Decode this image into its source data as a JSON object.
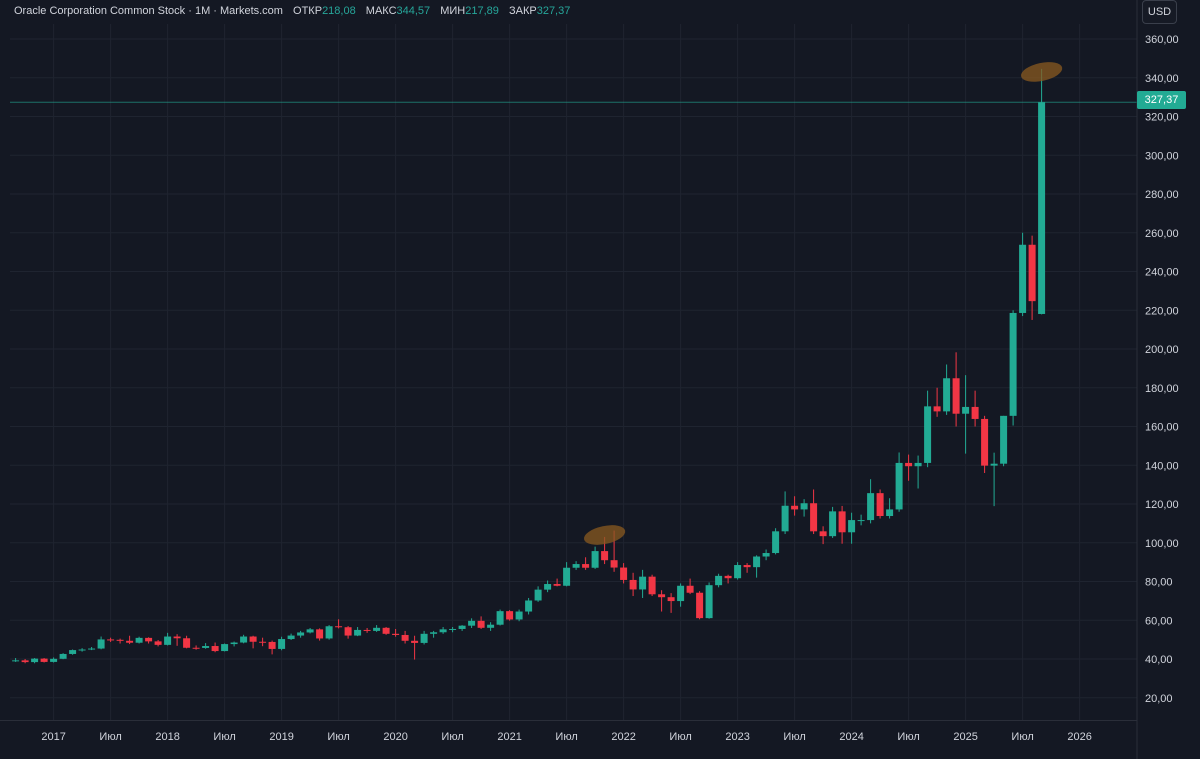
{
  "legend": {
    "title": "Oracle Corporation Common Stock · 1M · Markets.com",
    "open_label": "ОТКР",
    "open_value": "218,08",
    "high_label": "МАКС",
    "high_value": "344,57",
    "low_label": "МИН",
    "low_value": "217,89",
    "close_label": "ЗАКР",
    "close_value": "327,37"
  },
  "currency_button": "USD",
  "last_price_label": "327,37",
  "colors": {
    "up": "#22ab94",
    "down": "#f23645",
    "background": "#141823",
    "grid": "#1f2430",
    "highlight": "#8a5a20"
  },
  "chart_data": {
    "type": "candlestick",
    "interval": "1M",
    "ylim": [
      8,
      368
    ],
    "yticks": [
      20,
      40,
      60,
      80,
      100,
      120,
      140,
      160,
      180,
      200,
      220,
      240,
      260,
      280,
      300,
      320,
      340,
      360
    ],
    "ytick_labels": [
      "20,00",
      "40,00",
      "60,00",
      "80,00",
      "100,00",
      "120,00",
      "140,00",
      "160,00",
      "180,00",
      "200,00",
      "220,00",
      "240,00",
      "260,00",
      "280,00",
      "300,00",
      "320,00",
      "340,00",
      "360,00"
    ],
    "xtick_labels": [
      {
        "label": "2017",
        "date": "2017-01"
      },
      {
        "label": "Июл",
        "date": "2017-07"
      },
      {
        "label": "2018",
        "date": "2018-01"
      },
      {
        "label": "Июл",
        "date": "2018-07"
      },
      {
        "label": "2019",
        "date": "2019-01"
      },
      {
        "label": "Июл",
        "date": "2019-07"
      },
      {
        "label": "2020",
        "date": "2020-01"
      },
      {
        "label": "Июл",
        "date": "2020-07"
      },
      {
        "label": "2021",
        "date": "2021-01"
      },
      {
        "label": "Июл",
        "date": "2021-07"
      },
      {
        "label": "2022",
        "date": "2022-01"
      },
      {
        "label": "Июл",
        "date": "2022-07"
      },
      {
        "label": "2023",
        "date": "2023-01"
      },
      {
        "label": "Июл",
        "date": "2023-07"
      },
      {
        "label": "2024",
        "date": "2024-01"
      },
      {
        "label": "Июл",
        "date": "2024-07"
      },
      {
        "label": "2025",
        "date": "2025-01"
      },
      {
        "label": "Июл",
        "date": "2025-07"
      },
      {
        "label": "2026",
        "date": "2026-01"
      }
    ],
    "last_price": 327.37,
    "highlights": [
      {
        "date": "2021-11",
        "value": 104
      },
      {
        "date": "2025-09",
        "value": 343
      }
    ],
    "candles": [
      {
        "date": "2016-09",
        "o": 39.3,
        "h": 40.5,
        "l": 38.5,
        "c": 39.3
      },
      {
        "date": "2016-10",
        "o": 39.3,
        "h": 40.0,
        "l": 37.8,
        "c": 38.4
      },
      {
        "date": "2016-11",
        "o": 38.4,
        "h": 40.5,
        "l": 37.8,
        "c": 40.2
      },
      {
        "date": "2016-12",
        "o": 40.2,
        "h": 40.5,
        "l": 38.2,
        "c": 38.5
      },
      {
        "date": "2017-01",
        "o": 38.5,
        "h": 40.8,
        "l": 38.2,
        "c": 40.1
      },
      {
        "date": "2017-02",
        "o": 40.1,
        "h": 43.0,
        "l": 39.9,
        "c": 42.6
      },
      {
        "date": "2017-03",
        "o": 42.6,
        "h": 44.9,
        "l": 42.2,
        "c": 44.6
      },
      {
        "date": "2017-04",
        "o": 44.6,
        "h": 45.6,
        "l": 43.8,
        "c": 44.9
      },
      {
        "date": "2017-05",
        "o": 44.9,
        "h": 46.2,
        "l": 44.6,
        "c": 45.4
      },
      {
        "date": "2017-06",
        "o": 45.4,
        "h": 51.6,
        "l": 45.0,
        "c": 50.1
      },
      {
        "date": "2017-07",
        "o": 50.1,
        "h": 51.0,
        "l": 48.8,
        "c": 49.9
      },
      {
        "date": "2017-08",
        "o": 49.9,
        "h": 50.5,
        "l": 48.0,
        "c": 49.4
      },
      {
        "date": "2017-09",
        "o": 49.4,
        "h": 52.0,
        "l": 47.7,
        "c": 48.4
      },
      {
        "date": "2017-10",
        "o": 48.4,
        "h": 51.5,
        "l": 48.0,
        "c": 50.9
      },
      {
        "date": "2017-11",
        "o": 50.9,
        "h": 51.2,
        "l": 48.0,
        "c": 49.1
      },
      {
        "date": "2017-12",
        "o": 49.1,
        "h": 49.8,
        "l": 46.5,
        "c": 47.3
      },
      {
        "date": "2018-01",
        "o": 47.3,
        "h": 53.5,
        "l": 47.0,
        "c": 51.6
      },
      {
        "date": "2018-02",
        "o": 51.6,
        "h": 52.8,
        "l": 46.8,
        "c": 50.7
      },
      {
        "date": "2018-03",
        "o": 50.7,
        "h": 52.0,
        "l": 45.5,
        "c": 45.8
      },
      {
        "date": "2018-04",
        "o": 45.8,
        "h": 47.0,
        "l": 44.8,
        "c": 45.7
      },
      {
        "date": "2018-05",
        "o": 45.7,
        "h": 48.2,
        "l": 45.3,
        "c": 46.7
      },
      {
        "date": "2018-06",
        "o": 46.7,
        "h": 48.5,
        "l": 43.5,
        "c": 44.1
      },
      {
        "date": "2018-07",
        "o": 44.1,
        "h": 48.0,
        "l": 43.9,
        "c": 47.7
      },
      {
        "date": "2018-08",
        "o": 47.7,
        "h": 49.0,
        "l": 46.5,
        "c": 48.5
      },
      {
        "date": "2018-09",
        "o": 48.5,
        "h": 52.5,
        "l": 48.1,
        "c": 51.6
      },
      {
        "date": "2018-10",
        "o": 51.6,
        "h": 52.0,
        "l": 45.5,
        "c": 48.9
      },
      {
        "date": "2018-11",
        "o": 48.9,
        "h": 51.0,
        "l": 46.6,
        "c": 48.8
      },
      {
        "date": "2018-12",
        "o": 48.8,
        "h": 49.5,
        "l": 42.4,
        "c": 45.2
      },
      {
        "date": "2019-01",
        "o": 45.2,
        "h": 51.5,
        "l": 44.5,
        "c": 50.3
      },
      {
        "date": "2019-02",
        "o": 50.3,
        "h": 53.1,
        "l": 49.8,
        "c": 52.1
      },
      {
        "date": "2019-03",
        "o": 52.1,
        "h": 54.5,
        "l": 51.0,
        "c": 53.7
      },
      {
        "date": "2019-04",
        "o": 53.7,
        "h": 56.0,
        "l": 53.2,
        "c": 55.3
      },
      {
        "date": "2019-05",
        "o": 55.3,
        "h": 55.8,
        "l": 49.5,
        "c": 50.6
      },
      {
        "date": "2019-06",
        "o": 50.6,
        "h": 57.5,
        "l": 50.0,
        "c": 56.9
      },
      {
        "date": "2019-07",
        "o": 56.9,
        "h": 60.5,
        "l": 55.8,
        "c": 56.4
      },
      {
        "date": "2019-08",
        "o": 56.4,
        "h": 57.0,
        "l": 50.5,
        "c": 52.1
      },
      {
        "date": "2019-09",
        "o": 52.1,
        "h": 56.5,
        "l": 51.8,
        "c": 55.0
      },
      {
        "date": "2019-10",
        "o": 55.0,
        "h": 56.0,
        "l": 53.5,
        "c": 54.5
      },
      {
        "date": "2019-11",
        "o": 54.5,
        "h": 57.5,
        "l": 54.0,
        "c": 56.1
      },
      {
        "date": "2019-12",
        "o": 56.1,
        "h": 56.5,
        "l": 52.5,
        "c": 53.0
      },
      {
        "date": "2020-01",
        "o": 53.0,
        "h": 55.5,
        "l": 51.5,
        "c": 52.4
      },
      {
        "date": "2020-02",
        "o": 52.4,
        "h": 54.5,
        "l": 48.0,
        "c": 49.4
      },
      {
        "date": "2020-03",
        "o": 49.4,
        "h": 52.0,
        "l": 39.7,
        "c": 48.3
      },
      {
        "date": "2020-04",
        "o": 48.3,
        "h": 54.5,
        "l": 47.5,
        "c": 53.0
      },
      {
        "date": "2020-05",
        "o": 53.0,
        "h": 54.5,
        "l": 51.0,
        "c": 53.8
      },
      {
        "date": "2020-06",
        "o": 53.8,
        "h": 56.5,
        "l": 53.0,
        "c": 55.3
      },
      {
        "date": "2020-07",
        "o": 55.3,
        "h": 56.5,
        "l": 53.8,
        "c": 55.5
      },
      {
        "date": "2020-08",
        "o": 55.5,
        "h": 57.5,
        "l": 54.5,
        "c": 57.2
      },
      {
        "date": "2020-09",
        "o": 57.2,
        "h": 61.0,
        "l": 56.0,
        "c": 59.7
      },
      {
        "date": "2020-10",
        "o": 59.7,
        "h": 62.0,
        "l": 55.5,
        "c": 56.1
      },
      {
        "date": "2020-11",
        "o": 56.1,
        "h": 59.0,
        "l": 54.5,
        "c": 57.7
      },
      {
        "date": "2020-12",
        "o": 57.7,
        "h": 65.5,
        "l": 57.3,
        "c": 64.7
      },
      {
        "date": "2021-01",
        "o": 64.7,
        "h": 65.2,
        "l": 59.8,
        "c": 60.4
      },
      {
        "date": "2021-02",
        "o": 60.4,
        "h": 65.5,
        "l": 59.5,
        "c": 64.5
      },
      {
        "date": "2021-03",
        "o": 64.5,
        "h": 71.5,
        "l": 63.0,
        "c": 70.2
      },
      {
        "date": "2021-04",
        "o": 70.2,
        "h": 77.5,
        "l": 69.5,
        "c": 75.8
      },
      {
        "date": "2021-05",
        "o": 75.8,
        "h": 80.5,
        "l": 74.5,
        "c": 78.7
      },
      {
        "date": "2021-06",
        "o": 78.7,
        "h": 81.5,
        "l": 77.5,
        "c": 77.8
      },
      {
        "date": "2021-07",
        "o": 77.8,
        "h": 90.0,
        "l": 77.5,
        "c": 87.1
      },
      {
        "date": "2021-08",
        "o": 87.1,
        "h": 90.5,
        "l": 86.0,
        "c": 89.0
      },
      {
        "date": "2021-09",
        "o": 89.0,
        "h": 92.5,
        "l": 86.0,
        "c": 87.1
      },
      {
        "date": "2021-10",
        "o": 87.1,
        "h": 98.0,
        "l": 86.5,
        "c": 95.7
      },
      {
        "date": "2021-11",
        "o": 95.7,
        "h": 103.0,
        "l": 89.0,
        "c": 91.0
      },
      {
        "date": "2021-12",
        "o": 91.0,
        "h": 106.3,
        "l": 85.0,
        "c": 87.2
      },
      {
        "date": "2022-01",
        "o": 87.2,
        "h": 89.5,
        "l": 79.0,
        "c": 80.8
      },
      {
        "date": "2022-02",
        "o": 80.8,
        "h": 84.5,
        "l": 72.5,
        "c": 75.9
      },
      {
        "date": "2022-03",
        "o": 75.9,
        "h": 86.0,
        "l": 71.5,
        "c": 82.5
      },
      {
        "date": "2022-04",
        "o": 82.5,
        "h": 83.5,
        "l": 72.5,
        "c": 73.4
      },
      {
        "date": "2022-05",
        "o": 73.4,
        "h": 75.5,
        "l": 64.5,
        "c": 71.9
      },
      {
        "date": "2022-06",
        "o": 71.9,
        "h": 74.0,
        "l": 63.8,
        "c": 69.9
      },
      {
        "date": "2022-07",
        "o": 69.9,
        "h": 79.0,
        "l": 67.0,
        "c": 77.8
      },
      {
        "date": "2022-08",
        "o": 77.8,
        "h": 81.5,
        "l": 73.5,
        "c": 74.2
      },
      {
        "date": "2022-09",
        "o": 74.2,
        "h": 75.0,
        "l": 60.5,
        "c": 61.1
      },
      {
        "date": "2022-10",
        "o": 61.1,
        "h": 79.5,
        "l": 60.8,
        "c": 78.1
      },
      {
        "date": "2022-11",
        "o": 78.1,
        "h": 84.0,
        "l": 77.0,
        "c": 82.9
      },
      {
        "date": "2022-12",
        "o": 82.9,
        "h": 83.5,
        "l": 79.0,
        "c": 81.7
      },
      {
        "date": "2023-01",
        "o": 81.7,
        "h": 90.0,
        "l": 81.0,
        "c": 88.5
      },
      {
        "date": "2023-02",
        "o": 88.5,
        "h": 89.5,
        "l": 84.5,
        "c": 87.4
      },
      {
        "date": "2023-03",
        "o": 87.4,
        "h": 93.5,
        "l": 82.0,
        "c": 92.9
      },
      {
        "date": "2023-04",
        "o": 92.9,
        "h": 96.5,
        "l": 91.0,
        "c": 94.7
      },
      {
        "date": "2023-05",
        "o": 94.7,
        "h": 107.5,
        "l": 94.0,
        "c": 105.9
      },
      {
        "date": "2023-06",
        "o": 105.9,
        "h": 126.5,
        "l": 104.5,
        "c": 119.1
      },
      {
        "date": "2023-07",
        "o": 119.1,
        "h": 124.0,
        "l": 114.0,
        "c": 117.2
      },
      {
        "date": "2023-08",
        "o": 117.2,
        "h": 122.5,
        "l": 113.5,
        "c": 120.4
      },
      {
        "date": "2023-09",
        "o": 120.4,
        "h": 127.5,
        "l": 104.5,
        "c": 105.9
      },
      {
        "date": "2023-10",
        "o": 105.9,
        "h": 108.5,
        "l": 99.3,
        "c": 103.4
      },
      {
        "date": "2023-11",
        "o": 103.4,
        "h": 118.5,
        "l": 102.5,
        "c": 116.2
      },
      {
        "date": "2023-12",
        "o": 116.2,
        "h": 119.0,
        "l": 99.5,
        "c": 105.4
      },
      {
        "date": "2024-01",
        "o": 105.4,
        "h": 115.5,
        "l": 99.5,
        "c": 111.7
      },
      {
        "date": "2024-02",
        "o": 111.7,
        "h": 114.5,
        "l": 109.0,
        "c": 111.7
      },
      {
        "date": "2024-03",
        "o": 111.7,
        "h": 132.8,
        "l": 110.0,
        "c": 125.6
      },
      {
        "date": "2024-04",
        "o": 125.6,
        "h": 127.5,
        "l": 112.5,
        "c": 113.8
      },
      {
        "date": "2024-05",
        "o": 113.8,
        "h": 123.0,
        "l": 112.5,
        "c": 117.2
      },
      {
        "date": "2024-06",
        "o": 117.2,
        "h": 146.6,
        "l": 116.0,
        "c": 141.2
      },
      {
        "date": "2024-07",
        "o": 141.2,
        "h": 145.5,
        "l": 132.0,
        "c": 139.5
      },
      {
        "date": "2024-08",
        "o": 139.5,
        "h": 145.0,
        "l": 128.0,
        "c": 141.2
      },
      {
        "date": "2024-09",
        "o": 141.2,
        "h": 178.5,
        "l": 139.0,
        "c": 170.4
      },
      {
        "date": "2024-10",
        "o": 170.4,
        "h": 180.0,
        "l": 165.0,
        "c": 167.8
      },
      {
        "date": "2024-11",
        "o": 167.8,
        "h": 192.0,
        "l": 166.0,
        "c": 184.9
      },
      {
        "date": "2024-12",
        "o": 184.9,
        "h": 198.3,
        "l": 160.0,
        "c": 166.6
      },
      {
        "date": "2025-01",
        "o": 166.6,
        "h": 186.5,
        "l": 146.0,
        "c": 170.1
      },
      {
        "date": "2025-02",
        "o": 170.1,
        "h": 178.5,
        "l": 160.0,
        "c": 163.9
      },
      {
        "date": "2025-03",
        "o": 163.9,
        "h": 165.5,
        "l": 136.0,
        "c": 139.8
      },
      {
        "date": "2025-04",
        "o": 139.8,
        "h": 146.5,
        "l": 118.9,
        "c": 140.8
      },
      {
        "date": "2025-05",
        "o": 140.8,
        "h": 165.5,
        "l": 139.5,
        "c": 165.5
      },
      {
        "date": "2025-06",
        "o": 165.5,
        "h": 220.0,
        "l": 160.5,
        "c": 218.6
      },
      {
        "date": "2025-07",
        "o": 218.6,
        "h": 260.0,
        "l": 217.0,
        "c": 253.8
      },
      {
        "date": "2025-08",
        "o": 253.8,
        "h": 258.5,
        "l": 215.0,
        "c": 224.7
      },
      {
        "date": "2025-09",
        "o": 218.08,
        "h": 344.57,
        "l": 217.89,
        "c": 327.37
      }
    ]
  }
}
